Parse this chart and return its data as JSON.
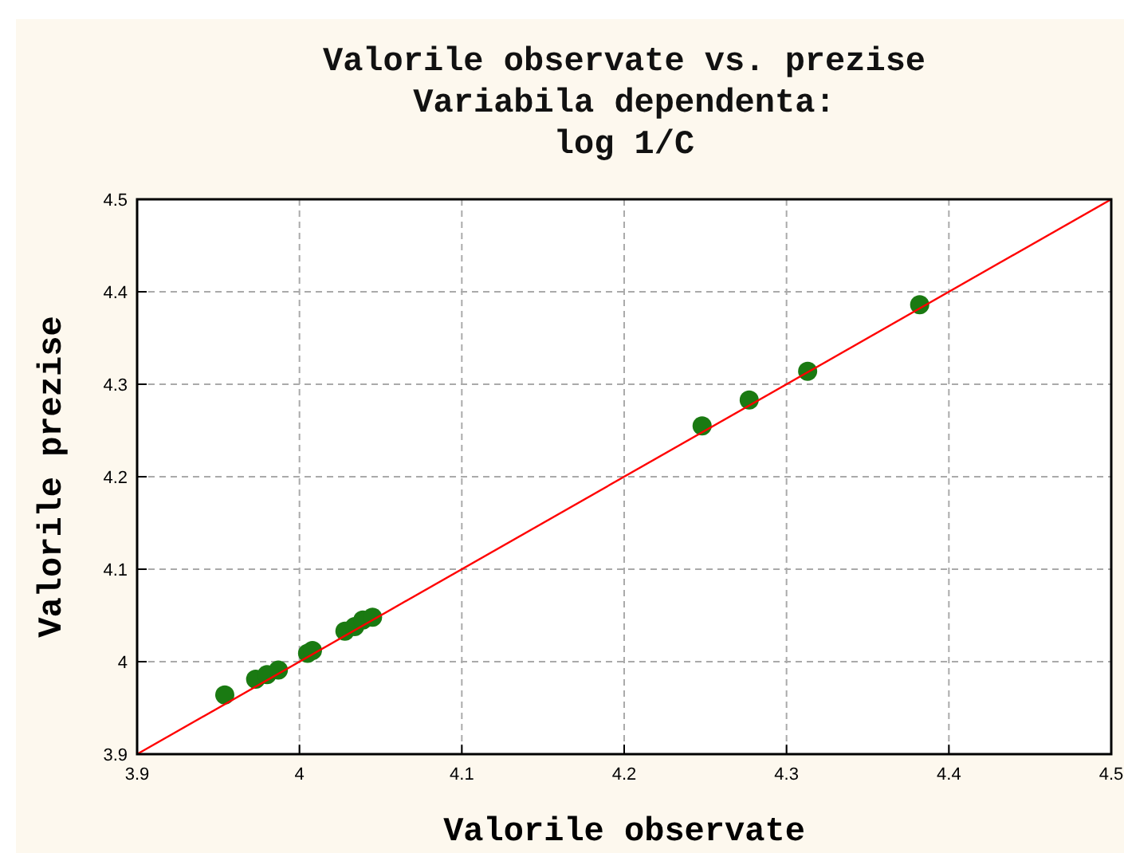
{
  "chart_data": {
    "type": "scatter",
    "title": "Valorile observate vs. prezise\nVariabila dependenta:\nlog 1/C",
    "xlabel": "Valorile observate",
    "ylabel": "Valorile prezise",
    "xlim": [
      3.9,
      4.5
    ],
    "ylim": [
      3.9,
      4.5
    ],
    "xticks": [
      3.9,
      4.0,
      4.1,
      4.2,
      4.3,
      4.4,
      4.5
    ],
    "yticks": [
      3.9,
      4.0,
      4.1,
      4.2,
      4.3,
      4.4,
      4.5
    ],
    "grid": true,
    "series": [
      {
        "marker": "circle",
        "color": "#1a7a12",
        "x": [
          3.954,
          3.973,
          3.98,
          3.987,
          4.005,
          4.008,
          4.028,
          4.034,
          4.039,
          4.045,
          4.248,
          4.277,
          4.313,
          4.382
        ],
        "values": [
          3.964,
          3.981,
          3.986,
          3.991,
          4.009,
          4.012,
          4.033,
          4.038,
          4.045,
          4.048,
          4.255,
          4.283,
          4.314,
          4.386
        ]
      },
      {
        "type": "line",
        "color": "#ff0000",
        "x": [
          3.9,
          4.5
        ],
        "values": [
          3.9,
          4.5
        ]
      }
    ]
  }
}
